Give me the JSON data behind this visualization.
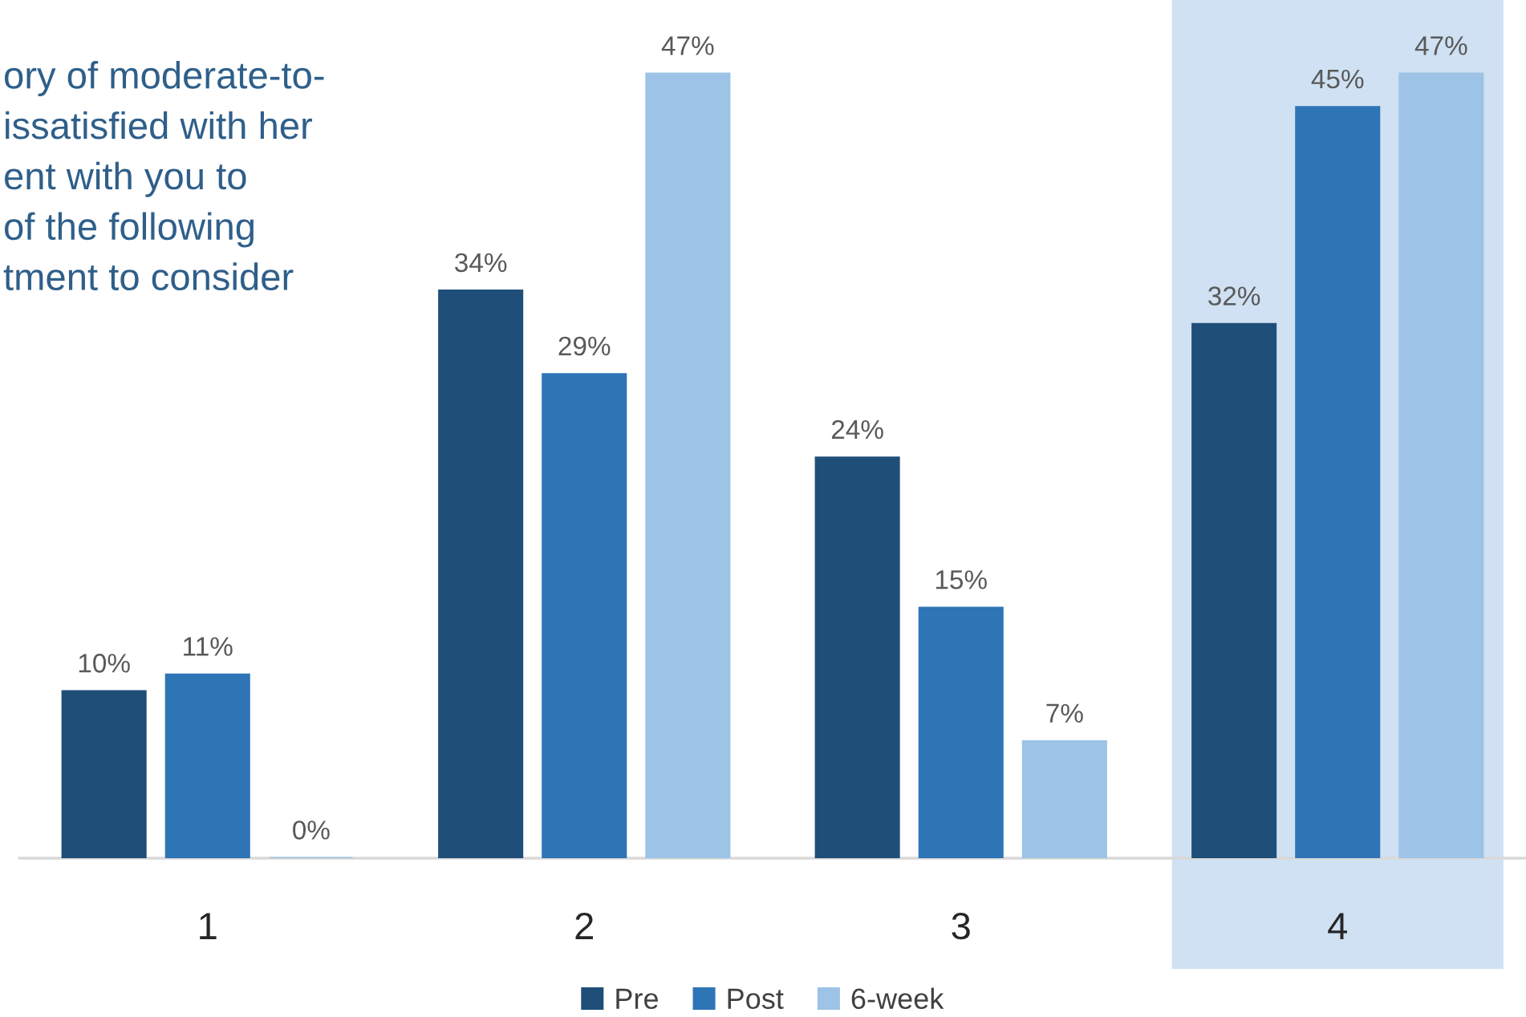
{
  "chart_data": {
    "type": "bar",
    "categories": [
      "1",
      "2",
      "3",
      "4"
    ],
    "series": [
      {
        "name": "Pre",
        "color": "#1f4e79",
        "values": [
          10,
          34,
          24,
          32
        ],
        "value_labels": [
          "10%",
          "34%",
          "24%",
          "32%"
        ]
      },
      {
        "name": "Post",
        "color": "#2e75b6",
        "values": [
          11,
          29,
          15,
          45
        ],
        "value_labels": [
          "11%",
          "29%",
          "15%",
          "45%"
        ]
      },
      {
        "name": "6-week",
        "color": "#9dc3e6",
        "values": [
          0,
          47,
          7,
          47
        ],
        "value_labels": [
          "0%",
          "47%",
          "7%",
          "47%"
        ]
      }
    ],
    "annotations": [
      "ory of moderate-to-\nissatisfied with her\nent with you to\nof the following\ntment to consider"
    ],
    "bands": [
      {
        "axis": "x",
        "from": "4",
        "to": "4",
        "color": "#cfe1f2"
      }
    ],
    "legend": "bottom"
  }
}
